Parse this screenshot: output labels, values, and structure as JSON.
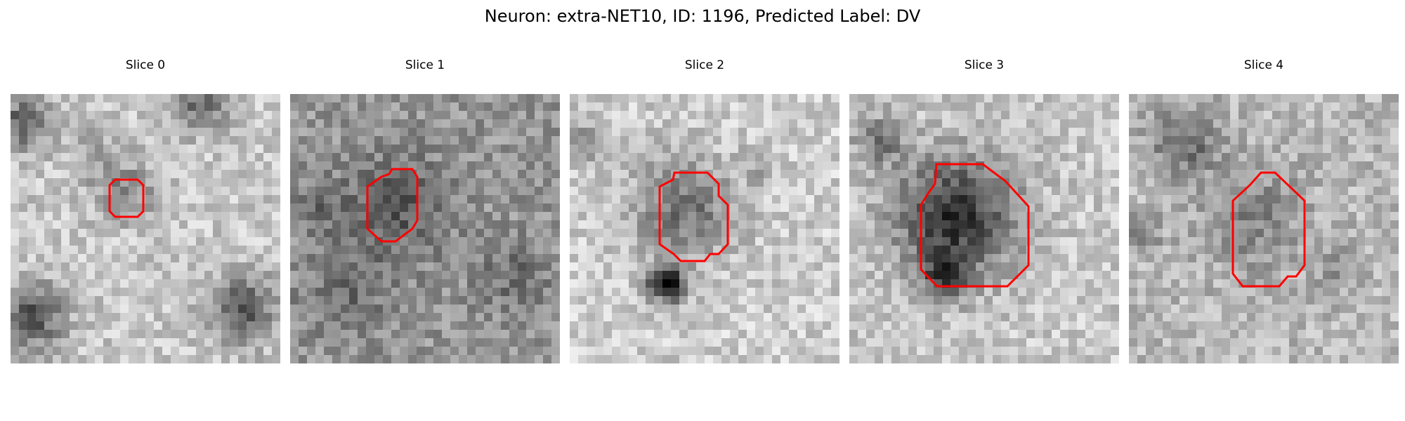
{
  "figure": {
    "title": "Neuron: extra-NET10, ID: 1196, Predicted Label: DV",
    "outline_color": "#ff0000"
  },
  "panels": [
    {
      "title": "Slice 0",
      "kind": "slice-image"
    },
    {
      "title": "Slice 1",
      "kind": "slice-image"
    },
    {
      "title": "Slice 2",
      "kind": "slice-image"
    },
    {
      "title": "Slice 3",
      "kind": "slice-image"
    },
    {
      "title": "Slice 4",
      "kind": "slice-image"
    }
  ]
}
